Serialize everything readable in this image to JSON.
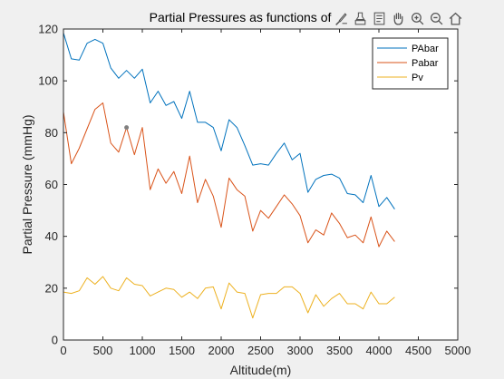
{
  "window": {
    "background": "#f0f0f0"
  },
  "toolbar": {
    "buttons": [
      {
        "name": "brush-icon",
        "label": "Brush"
      },
      {
        "name": "data-tips-icon",
        "label": "Data Tips"
      },
      {
        "name": "export-icon",
        "label": "Export"
      },
      {
        "name": "pan-icon",
        "label": "Pan"
      },
      {
        "name": "zoom-in-icon",
        "label": "Zoom In"
      },
      {
        "name": "zoom-out-icon",
        "label": "Zoom Out"
      },
      {
        "name": "home-icon",
        "label": "Restore View"
      }
    ]
  },
  "chart_data": {
    "type": "line",
    "title": "Partial Pressures as functions of",
    "xlabel": "Altitude(m)",
    "ylabel": "Partial Pressure (mmHg)",
    "xlim": [
      0,
      5000
    ],
    "ylim": [
      0,
      120
    ],
    "xticks": [
      0,
      500,
      1000,
      1500,
      2000,
      2500,
      3000,
      3500,
      4000,
      4500,
      5000
    ],
    "yticks": [
      0,
      20,
      40,
      60,
      80,
      100,
      120
    ],
    "grid": false,
    "legend_position": "top-right",
    "x": [
      0,
      100,
      200,
      300,
      400,
      500,
      600,
      700,
      800,
      900,
      1000,
      1100,
      1200,
      1300,
      1400,
      1500,
      1600,
      1700,
      1800,
      1900,
      2000,
      2100,
      2200,
      2300,
      2400,
      2500,
      2600,
      2700,
      2800,
      2900,
      3000,
      3100,
      3200,
      3300,
      3400,
      3500,
      3600,
      3700,
      3800,
      3900,
      4000,
      4100,
      4200
    ],
    "series": [
      {
        "name": "PAbar",
        "color": "#0072bd",
        "values": [
          118.5,
          108.5,
          108,
          114.5,
          116,
          114.5,
          105,
          101,
          104,
          101,
          104.5,
          91.5,
          96,
          90.5,
          92,
          85.5,
          96,
          84,
          84,
          82,
          73,
          85,
          82,
          75,
          67.5,
          68,
          67.5,
          72,
          76,
          69.5,
          72,
          57,
          62,
          63.5,
          64,
          62.5,
          56.5,
          56,
          53,
          63.5,
          51.5,
          55,
          50.5
        ]
      },
      {
        "name": "Pabar",
        "color": "#d95319",
        "values": [
          88,
          68,
          74,
          81.5,
          89,
          91.5,
          76,
          72.5,
          82,
          71.5,
          82,
          58,
          66,
          60.5,
          65,
          56.5,
          71,
          53,
          62,
          55.5,
          43.5,
          62.5,
          58,
          55.5,
          42,
          50,
          47,
          51.5,
          56,
          52.5,
          48,
          37.5,
          42.5,
          40.5,
          49,
          45,
          39.5,
          40.5,
          37.5,
          47.5,
          36,
          42,
          38
        ]
      },
      {
        "name": "Pv",
        "color": "#edb120",
        "values": [
          18.5,
          18,
          19,
          24,
          21.5,
          24.5,
          20,
          19,
          24,
          21.5,
          21,
          17,
          18.5,
          20,
          19.5,
          16.5,
          18.5,
          16,
          20,
          20.5,
          12,
          22,
          18.5,
          18,
          8.5,
          17.5,
          18,
          18,
          20.5,
          20.5,
          18,
          10.5,
          17.5,
          13,
          16,
          18,
          14,
          14,
          12,
          18.5,
          14,
          14,
          16.5
        ]
      }
    ],
    "markers": [
      {
        "series": "Pabar",
        "x": 800,
        "y": 82,
        "color": "#808080"
      }
    ]
  }
}
